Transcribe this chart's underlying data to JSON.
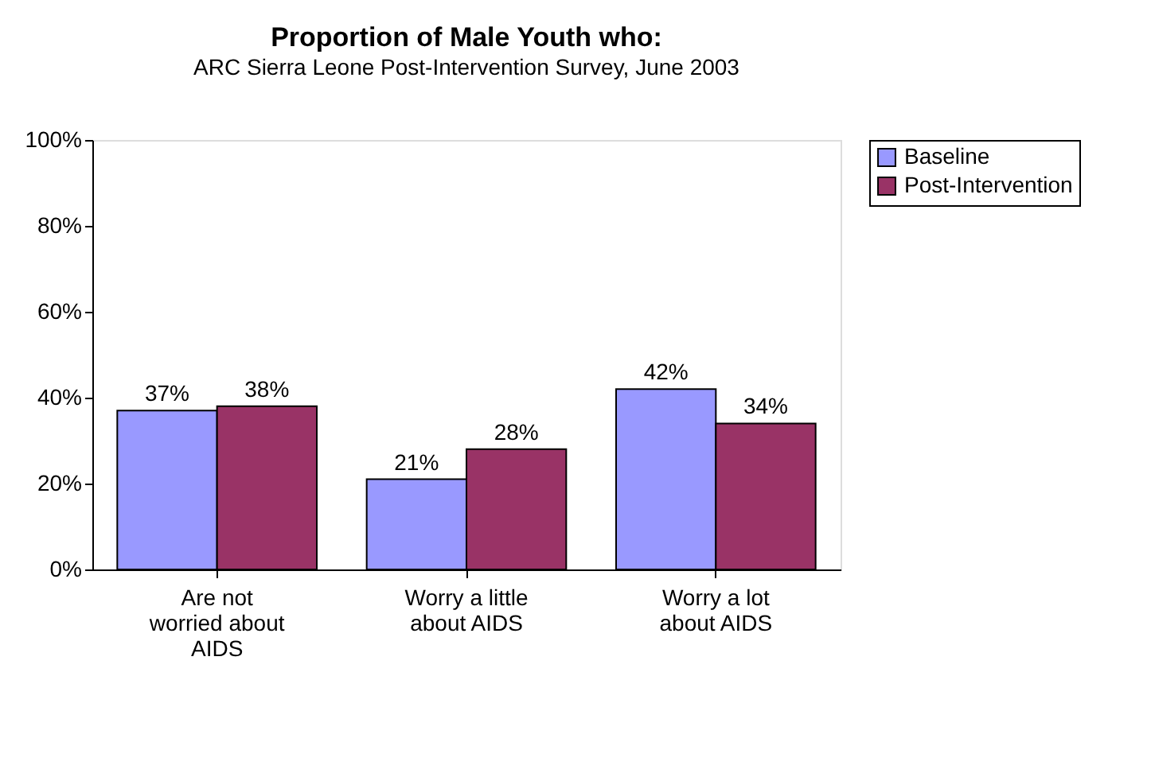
{
  "chart_data": {
    "type": "bar",
    "title": "Proportion of Male Youth who:",
    "subtitle": "ARC Sierra Leone Post-Intervention Survey, June 2003",
    "categories": [
      "Are not worried about AIDS",
      "Worry a little about AIDS",
      "Worry a lot about AIDS"
    ],
    "series": [
      {
        "name": "Baseline",
        "color": "#9999ff",
        "values": [
          37,
          21,
          42
        ],
        "value_labels": [
          "37%",
          "21%",
          "42%"
        ]
      },
      {
        "name": "Post-Intervention",
        "color": "#993366",
        "values": [
          38,
          28,
          34
        ],
        "value_labels": [
          "38%",
          "28%",
          "34%"
        ]
      }
    ],
    "ylim": [
      0,
      100
    ],
    "yticks": [
      {
        "value": 0,
        "label": "0%"
      },
      {
        "value": 20,
        "label": "20%"
      },
      {
        "value": 40,
        "label": "40%"
      },
      {
        "value": 60,
        "label": "60%"
      },
      {
        "value": 80,
        "label": "80%"
      },
      {
        "value": 100,
        "label": "100%"
      }
    ],
    "grid": false,
    "legend": "right"
  }
}
